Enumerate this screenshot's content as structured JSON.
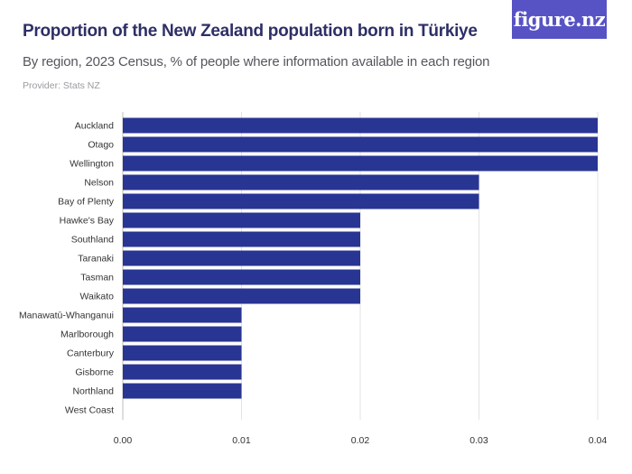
{
  "header": {
    "title": "Proportion of the New Zealand population born in Türkiye",
    "subtitle": "By region, 2023 Census, % of people where information available in each region",
    "provider": "Provider: Stats NZ",
    "logo_text": "figure.nz"
  },
  "colors": {
    "bar": "#283593",
    "title": "#2e2f66",
    "logo_bg": "#5753c5",
    "grid": "#e3e3e3"
  },
  "chart_data": {
    "type": "bar",
    "orientation": "horizontal",
    "categories": [
      "Auckland",
      "Otago",
      "Wellington",
      "Nelson",
      "Bay of Plenty",
      "Hawke's Bay",
      "Southland",
      "Taranaki",
      "Tasman",
      "Waikato",
      "Manawatū-Whanganui",
      "Marlborough",
      "Canterbury",
      "Gisborne",
      "Northland",
      "West Coast"
    ],
    "values": [
      0.04,
      0.04,
      0.04,
      0.03,
      0.03,
      0.02,
      0.02,
      0.02,
      0.02,
      0.02,
      0.01,
      0.01,
      0.01,
      0.01,
      0.01,
      0
    ],
    "xlim": [
      0,
      0.04
    ],
    "xticks": [
      0,
      0.01,
      0.02,
      0.03,
      0.04
    ],
    "xtick_labels": [
      "0.00",
      "0.01",
      "0.02",
      "0.03",
      "0.04"
    ],
    "grid": true,
    "legend": "none"
  }
}
